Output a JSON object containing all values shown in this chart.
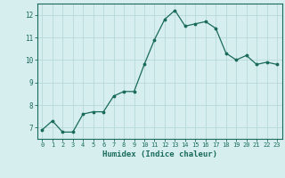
{
  "x": [
    0,
    1,
    2,
    3,
    4,
    5,
    6,
    7,
    8,
    9,
    10,
    11,
    12,
    13,
    14,
    15,
    16,
    17,
    18,
    19,
    20,
    21,
    22,
    23
  ],
  "y": [
    6.9,
    7.3,
    6.8,
    6.8,
    7.6,
    7.7,
    7.7,
    8.4,
    8.6,
    8.6,
    9.8,
    10.9,
    11.8,
    12.2,
    11.5,
    11.6,
    11.7,
    11.4,
    10.3,
    10.0,
    10.2,
    9.8,
    9.9,
    9.8
  ],
  "xlabel": "Humidex (Indice chaleur)",
  "ylim": [
    6.5,
    12.5
  ],
  "xlim": [
    -0.5,
    23.5
  ],
  "yticks": [
    7,
    8,
    9,
    10,
    11,
    12
  ],
  "xticks": [
    0,
    1,
    2,
    3,
    4,
    5,
    6,
    7,
    8,
    9,
    10,
    11,
    12,
    13,
    14,
    15,
    16,
    17,
    18,
    19,
    20,
    21,
    22,
    23
  ],
  "line_color": "#1a6b5a",
  "marker_color": "#1a6b5a",
  "bg_color": "#d6eeee",
  "grid_color": "#b8d8d8",
  "tick_color": "#1a6b5a",
  "label_color": "#1a6b5a"
}
